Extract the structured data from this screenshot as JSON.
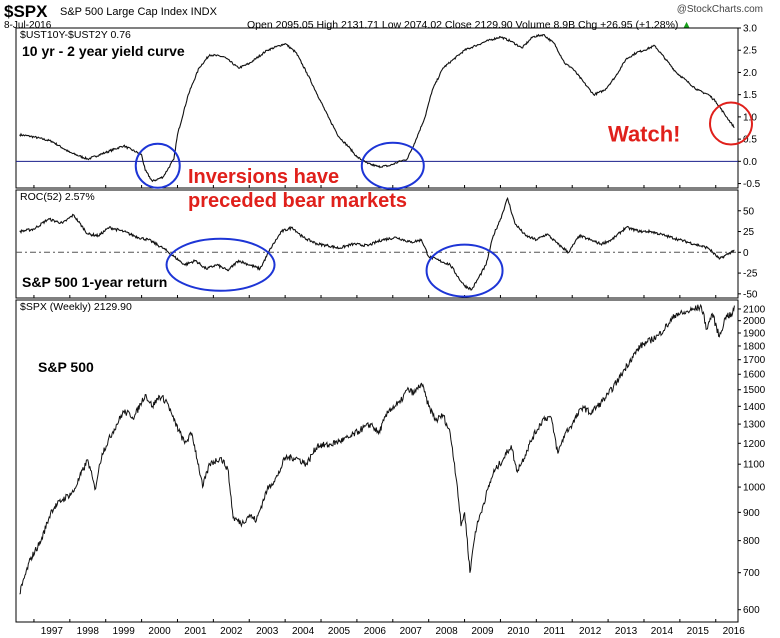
{
  "header": {
    "symbol": "$SPX",
    "name": "S&P 500 Large Cap Index INDX",
    "date": "8-Jul-2016",
    "ohlc": "Open 2095.05  High 2131.71  Low 2074.02  Close 2129.90  Volume 8.9B  Chg +26.95 (+1.28%)",
    "ohlc_color": "#000000",
    "chg_arrow": "▲",
    "chg_color": "#16a01a",
    "brand": "@StockCharts.com"
  },
  "colors": {
    "line": "#111111",
    "zero_line": "#1a1f8c",
    "circle_blue": "#1d35d6",
    "circle_red": "#e0201b",
    "annotation_red": "#e0201b"
  },
  "chart_data": [
    {
      "type": "line",
      "panel_label": "$UST10Y-$UST2Y 0.76",
      "annotation": "10 yr - 2 year yield curve",
      "x_ticks": [
        "1997",
        "1998",
        "1999",
        "2000",
        "2001",
        "2002",
        "2003",
        "2004",
        "2005",
        "2006",
        "2007",
        "2008",
        "2009",
        "2010",
        "2011",
        "2012",
        "2013",
        "2014",
        "2015",
        "2016"
      ],
      "ylim": [
        -0.6,
        3.0
      ],
      "y_ticks": [
        "3.0",
        "2.5",
        "2.0",
        "1.5",
        "1.0",
        "0.5",
        "0.0",
        "-0.5"
      ],
      "reference_line": 0.0,
      "series": [
        {
          "x": [
            1996.6,
            1997.0,
            1997.5,
            1998.0,
            1998.5,
            1999.0,
            1999.5,
            2000.0,
            2000.1,
            2000.3,
            2000.6,
            2000.9,
            2001.0,
            2001.3,
            2001.6,
            2001.9,
            2002.3,
            2002.7,
            2003.0,
            2003.5,
            2004.0,
            2004.3,
            2004.6,
            2004.9,
            2005.2,
            2005.5,
            2005.8,
            2006.0,
            2006.3,
            2006.6,
            2006.9,
            2007.2,
            2007.4,
            2007.6,
            2007.9,
            2008.1,
            2008.4,
            2008.7,
            2009.0,
            2009.3,
            2009.6,
            2010.0,
            2010.3,
            2010.6,
            2010.9,
            2011.2,
            2011.5,
            2011.8,
            2012.0,
            2012.3,
            2012.6,
            2012.9,
            2013.2,
            2013.5,
            2013.8,
            2014.0,
            2014.3,
            2014.6,
            2014.9,
            2015.2,
            2015.5,
            2015.8,
            2016.0,
            2016.3,
            2016.52
          ],
          "y": [
            0.6,
            0.55,
            0.45,
            0.2,
            0.05,
            0.2,
            0.35,
            0.15,
            -0.2,
            -0.45,
            -0.35,
            0.05,
            0.6,
            1.5,
            2.1,
            2.4,
            2.35,
            2.1,
            2.2,
            2.5,
            2.65,
            2.45,
            2.0,
            1.5,
            1.0,
            0.55,
            0.3,
            0.1,
            -0.05,
            -0.12,
            -0.1,
            0.0,
            0.05,
            0.4,
            1.0,
            1.6,
            2.1,
            2.3,
            2.5,
            2.6,
            2.7,
            2.8,
            2.7,
            2.55,
            2.8,
            2.85,
            2.65,
            2.2,
            2.1,
            1.8,
            1.5,
            1.6,
            1.9,
            2.3,
            2.45,
            2.5,
            2.6,
            2.3,
            2.0,
            1.8,
            1.6,
            1.5,
            1.35,
            1.0,
            0.76
          ]
        }
      ]
    },
    {
      "type": "line",
      "panel_label": "ROC(52) 2.57%",
      "annotation": "S&P 500 1-year return",
      "ylim": [
        -55,
        75
      ],
      "y_ticks": [
        "50",
        "25",
        "0",
        "-25",
        "-50"
      ],
      "reference_line": 0,
      "series": [
        {
          "x": [
            1996.6,
            1997.0,
            1997.4,
            1997.8,
            1998.1,
            1998.5,
            1998.8,
            1999.1,
            1999.5,
            1999.9,
            2000.2,
            2000.6,
            2000.9,
            2001.2,
            2001.5,
            2001.8,
            2002.1,
            2002.4,
            2002.7,
            2003.0,
            2003.3,
            2003.6,
            2003.9,
            2004.2,
            2004.5,
            2004.9,
            2005.2,
            2005.5,
            2005.9,
            2006.3,
            2006.7,
            2007.1,
            2007.5,
            2007.8,
            2008.0,
            2008.3,
            2008.6,
            2008.9,
            2009.0,
            2009.2,
            2009.4,
            2009.6,
            2009.8,
            2010.0,
            2010.2,
            2010.4,
            2010.7,
            2011.0,
            2011.3,
            2011.6,
            2011.9,
            2012.2,
            2012.5,
            2012.8,
            2013.1,
            2013.5,
            2013.9,
            2014.2,
            2014.6,
            2015.0,
            2015.4,
            2015.8,
            2016.1,
            2016.52
          ],
          "y": [
            25,
            28,
            40,
            35,
            45,
            22,
            20,
            30,
            25,
            18,
            15,
            5,
            -5,
            -15,
            -10,
            -20,
            -15,
            -22,
            -10,
            -15,
            -20,
            5,
            25,
            30,
            18,
            10,
            8,
            5,
            10,
            8,
            15,
            18,
            12,
            15,
            -5,
            -10,
            -15,
            -35,
            -40,
            -45,
            -30,
            -15,
            20,
            40,
            65,
            35,
            20,
            15,
            22,
            10,
            0,
            20,
            15,
            10,
            15,
            30,
            25,
            25,
            20,
            15,
            10,
            5,
            -8,
            2.57
          ]
        }
      ]
    },
    {
      "type": "line",
      "panel_label": "$SPX (Weekly) 2129.90",
      "annotation": "S&P 500",
      "y_scale": "log",
      "ylim": [
        570,
        2180
      ],
      "y_ticks": [
        "2100",
        "2000",
        "1900",
        "1800",
        "1700",
        "1600",
        "1500",
        "1400",
        "1300",
        "1200",
        "1100",
        "1000",
        "900",
        "800",
        "700",
        "600"
      ],
      "series": [
        {
          "x": [
            1996.6,
            1996.9,
            1997.2,
            1997.5,
            1997.8,
            1998.1,
            1998.5,
            1998.7,
            1998.9,
            1999.2,
            1999.5,
            1999.8,
            2000.1,
            2000.3,
            2000.5,
            2000.7,
            2000.9,
            2001.2,
            2001.4,
            2001.7,
            2001.9,
            2002.2,
            2002.4,
            2002.55,
            2002.8,
            2003.0,
            2003.2,
            2003.5,
            2003.8,
            2004.0,
            2004.3,
            2004.6,
            2004.9,
            2005.2,
            2005.5,
            2005.8,
            2006.1,
            2006.4,
            2006.6,
            2006.9,
            2007.2,
            2007.4,
            2007.6,
            2007.8,
            2008.0,
            2008.2,
            2008.4,
            2008.6,
            2008.8,
            2008.9,
            2009.0,
            2009.15,
            2009.3,
            2009.5,
            2009.8,
            2010.1,
            2010.3,
            2010.45,
            2010.6,
            2010.9,
            2011.2,
            2011.4,
            2011.6,
            2011.8,
            2012.0,
            2012.3,
            2012.5,
            2012.8,
            2013.0,
            2013.3,
            2013.6,
            2013.9,
            2014.1,
            2014.4,
            2014.7,
            2014.9,
            2015.1,
            2015.4,
            2015.6,
            2015.75,
            2015.9,
            2016.1,
            2016.3,
            2016.45,
            2016.52
          ],
          "y": [
            640,
            740,
            800,
            910,
            950,
            980,
            1120,
            990,
            1150,
            1260,
            1370,
            1340,
            1470,
            1400,
            1460,
            1430,
            1320,
            1200,
            1250,
            1000,
            1100,
            1130,
            1080,
            880,
            860,
            890,
            870,
            990,
            1050,
            1130,
            1130,
            1100,
            1190,
            1190,
            1210,
            1230,
            1270,
            1300,
            1250,
            1380,
            1420,
            1500,
            1480,
            1540,
            1400,
            1320,
            1350,
            1250,
            1000,
            850,
            900,
            700,
            830,
            920,
            1060,
            1130,
            1190,
            1070,
            1110,
            1230,
            1330,
            1340,
            1150,
            1250,
            1300,
            1400,
            1360,
            1420,
            1470,
            1570,
            1690,
            1800,
            1830,
            1880,
            1980,
            2060,
            2060,
            2100,
            2120,
            1930,
            2060,
            1870,
            2050,
            2040,
            2129.9
          ]
        }
      ]
    }
  ],
  "annotations": {
    "inversions_line1": "Inversions have",
    "inversions_line2": "preceded bear markets",
    "watch": "Watch!"
  }
}
